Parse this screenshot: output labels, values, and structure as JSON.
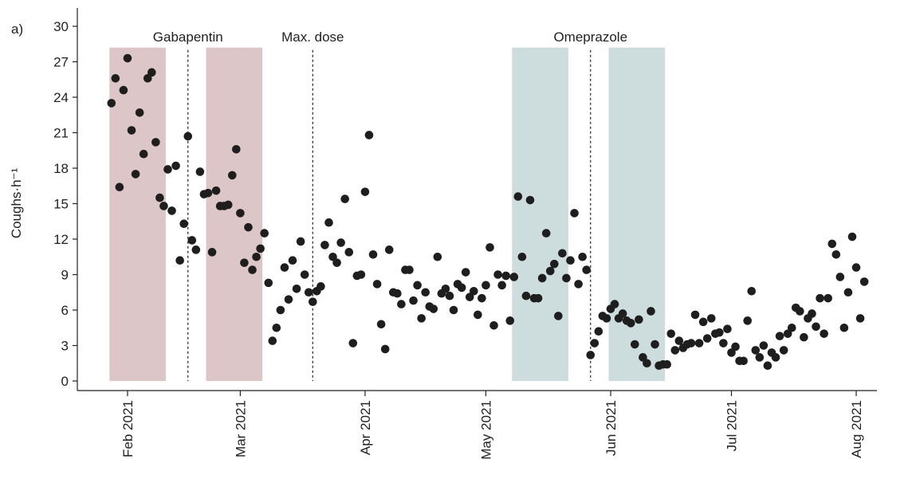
{
  "panel_label": "a)",
  "chart_data": {
    "type": "scatter",
    "xlabel": "",
    "ylabel": "Coughs·h⁻¹",
    "ylim": [
      0,
      30
    ],
    "yticks": [
      0,
      3,
      6,
      9,
      12,
      15,
      18,
      21,
      24,
      27,
      30
    ],
    "xticks": [
      {
        "date": "2021-02-01",
        "label": "Feb 2021"
      },
      {
        "date": "2021-03-01",
        "label": "Mar 2021"
      },
      {
        "date": "2021-04-01",
        "label": "Apr 2021"
      },
      {
        "date": "2021-05-01",
        "label": "May 2021"
      },
      {
        "date": "2021-06-01",
        "label": "Jun 2021"
      },
      {
        "date": "2021-07-01",
        "label": "Jul 2021"
      },
      {
        "date": "2021-08-01",
        "label": "Aug 2021"
      }
    ],
    "grid": false,
    "point_color": "#1e1e1e",
    "shaded_periods": [
      {
        "start": "2021-01-28",
        "end": "2021-02-10",
        "color": "#dcc6c8"
      },
      {
        "start": "2021-02-21",
        "end": "2021-03-06",
        "color": "#dcc6c8"
      },
      {
        "start": "2021-05-08",
        "end": "2021-05-21",
        "color": "#cddcdc"
      },
      {
        "start": "2021-06-01",
        "end": "2021-06-14",
        "color": "#cddcdc"
      }
    ],
    "annotations": [
      {
        "date": "2021-02-16",
        "label": "Gabapentin",
        "dashed_line": true
      },
      {
        "date": "2021-03-19",
        "label": "Max. dose",
        "dashed_line": true
      },
      {
        "date": "2021-05-27",
        "label": "Omeprazole",
        "dashed_line": true
      }
    ],
    "points": [
      [
        "2021-01-28",
        23.5
      ],
      [
        "2021-01-29",
        25.6
      ],
      [
        "2021-01-30",
        16.4
      ],
      [
        "2021-01-31",
        24.6
      ],
      [
        "2021-02-01",
        27.3
      ],
      [
        "2021-02-02",
        21.2
      ],
      [
        "2021-02-03",
        17.5
      ],
      [
        "2021-02-04",
        22.7
      ],
      [
        "2021-02-05",
        19.2
      ],
      [
        "2021-02-06",
        25.6
      ],
      [
        "2021-02-07",
        26.1
      ],
      [
        "2021-02-08",
        20.2
      ],
      [
        "2021-02-09",
        15.5
      ],
      [
        "2021-02-10",
        14.8
      ],
      [
        "2021-02-11",
        17.9
      ],
      [
        "2021-02-12",
        14.4
      ],
      [
        "2021-02-13",
        18.2
      ],
      [
        "2021-02-14",
        10.2
      ],
      [
        "2021-02-15",
        13.3
      ],
      [
        "2021-02-16",
        20.7
      ],
      [
        "2021-02-17",
        11.9
      ],
      [
        "2021-02-18",
        11.1
      ],
      [
        "2021-02-19",
        17.7
      ],
      [
        "2021-02-20",
        15.8
      ],
      [
        "2021-02-21",
        15.9
      ],
      [
        "2021-02-22",
        10.9
      ],
      [
        "2021-02-23",
        16.1
      ],
      [
        "2021-02-24",
        14.8
      ],
      [
        "2021-02-25",
        14.8
      ],
      [
        "2021-02-26",
        14.9
      ],
      [
        "2021-02-27",
        17.4
      ],
      [
        "2021-02-28",
        19.6
      ],
      [
        "2021-03-01",
        14.2
      ],
      [
        "2021-03-02",
        10.0
      ],
      [
        "2021-03-03",
        13.0
      ],
      [
        "2021-03-04",
        9.4
      ],
      [
        "2021-03-05",
        10.5
      ],
      [
        "2021-03-06",
        11.2
      ],
      [
        "2021-03-07",
        12.5
      ],
      [
        "2021-03-08",
        8.3
      ],
      [
        "2021-03-09",
        3.4
      ],
      [
        "2021-03-10",
        4.5
      ],
      [
        "2021-03-11",
        6.0
      ],
      [
        "2021-03-12",
        9.6
      ],
      [
        "2021-03-13",
        6.9
      ],
      [
        "2021-03-14",
        10.2
      ],
      [
        "2021-03-15",
        7.8
      ],
      [
        "2021-03-16",
        11.8
      ],
      [
        "2021-03-17",
        9.0
      ],
      [
        "2021-03-18",
        7.5
      ],
      [
        "2021-03-19",
        6.7
      ],
      [
        "2021-03-20",
        7.6
      ],
      [
        "2021-03-21",
        8.0
      ],
      [
        "2021-03-22",
        11.5
      ],
      [
        "2021-03-23",
        13.4
      ],
      [
        "2021-03-24",
        10.5
      ],
      [
        "2021-03-25",
        10.0
      ],
      [
        "2021-03-26",
        11.7
      ],
      [
        "2021-03-27",
        15.4
      ],
      [
        "2021-03-28",
        10.9
      ],
      [
        "2021-03-29",
        3.2
      ],
      [
        "2021-03-30",
        8.9
      ],
      [
        "2021-03-31",
        9.0
      ],
      [
        "2021-04-01",
        16.0
      ],
      [
        "2021-04-02",
        20.8
      ],
      [
        "2021-04-03",
        10.7
      ],
      [
        "2021-04-04",
        8.2
      ],
      [
        "2021-04-05",
        4.8
      ],
      [
        "2021-04-06",
        2.7
      ],
      [
        "2021-04-07",
        11.1
      ],
      [
        "2021-04-08",
        7.5
      ],
      [
        "2021-04-09",
        7.4
      ],
      [
        "2021-04-10",
        6.5
      ],
      [
        "2021-04-11",
        9.4
      ],
      [
        "2021-04-12",
        9.4
      ],
      [
        "2021-04-13",
        6.8
      ],
      [
        "2021-04-14",
        8.1
      ],
      [
        "2021-04-15",
        5.3
      ],
      [
        "2021-04-16",
        7.5
      ],
      [
        "2021-04-17",
        6.3
      ],
      [
        "2021-04-18",
        6.1
      ],
      [
        "2021-04-19",
        10.5
      ],
      [
        "2021-04-20",
        7.4
      ],
      [
        "2021-04-21",
        7.8
      ],
      [
        "2021-04-22",
        7.2
      ],
      [
        "2021-04-23",
        6.0
      ],
      [
        "2021-04-24",
        8.2
      ],
      [
        "2021-04-25",
        7.9
      ],
      [
        "2021-04-26",
        9.2
      ],
      [
        "2021-04-27",
        7.1
      ],
      [
        "2021-04-28",
        7.6
      ],
      [
        "2021-04-29",
        5.6
      ],
      [
        "2021-04-30",
        7.0
      ],
      [
        "2021-05-01",
        8.1
      ],
      [
        "2021-05-02",
        11.3
      ],
      [
        "2021-05-03",
        4.7
      ],
      [
        "2021-05-04",
        9.0
      ],
      [
        "2021-05-05",
        8.1
      ],
      [
        "2021-05-06",
        8.9
      ],
      [
        "2021-05-07",
        5.1
      ],
      [
        "2021-05-08",
        8.8
      ],
      [
        "2021-05-09",
        15.6
      ],
      [
        "2021-05-10",
        10.5
      ],
      [
        "2021-05-11",
        7.2
      ],
      [
        "2021-05-12",
        15.3
      ],
      [
        "2021-05-13",
        7.0
      ],
      [
        "2021-05-14",
        7.0
      ],
      [
        "2021-05-15",
        8.7
      ],
      [
        "2021-05-16",
        12.5
      ],
      [
        "2021-05-17",
        9.3
      ],
      [
        "2021-05-18",
        9.9
      ],
      [
        "2021-05-19",
        5.5
      ],
      [
        "2021-05-20",
        10.8
      ],
      [
        "2021-05-21",
        8.7
      ],
      [
        "2021-05-22",
        10.2
      ],
      [
        "2021-05-23",
        14.2
      ],
      [
        "2021-05-24",
        8.2
      ],
      [
        "2021-05-25",
        10.5
      ],
      [
        "2021-05-26",
        9.4
      ],
      [
        "2021-05-27",
        2.2
      ],
      [
        "2021-05-28",
        3.2
      ],
      [
        "2021-05-29",
        4.2
      ],
      [
        "2021-05-30",
        5.5
      ],
      [
        "2021-05-31",
        5.3
      ],
      [
        "2021-06-01",
        6.1
      ],
      [
        "2021-06-02",
        6.5
      ],
      [
        "2021-06-03",
        5.3
      ],
      [
        "2021-06-04",
        5.7
      ],
      [
        "2021-06-05",
        5.1
      ],
      [
        "2021-06-06",
        4.9
      ],
      [
        "2021-06-07",
        3.1
      ],
      [
        "2021-06-08",
        5.2
      ],
      [
        "2021-06-09",
        2.0
      ],
      [
        "2021-06-10",
        1.5
      ],
      [
        "2021-06-11",
        5.9
      ],
      [
        "2021-06-12",
        3.1
      ],
      [
        "2021-06-13",
        1.3
      ],
      [
        "2021-06-14",
        1.4
      ],
      [
        "2021-06-15",
        1.4
      ],
      [
        "2021-06-16",
        4.0
      ],
      [
        "2021-06-17",
        2.6
      ],
      [
        "2021-06-18",
        3.4
      ],
      [
        "2021-06-19",
        2.8
      ],
      [
        "2021-06-20",
        3.1
      ],
      [
        "2021-06-21",
        3.2
      ],
      [
        "2021-06-22",
        5.6
      ],
      [
        "2021-06-23",
        3.2
      ],
      [
        "2021-06-24",
        5.0
      ],
      [
        "2021-06-25",
        3.6
      ],
      [
        "2021-06-26",
        5.3
      ],
      [
        "2021-06-27",
        4.0
      ],
      [
        "2021-06-28",
        4.1
      ],
      [
        "2021-06-29",
        3.2
      ],
      [
        "2021-06-30",
        4.4
      ],
      [
        "2021-07-01",
        2.4
      ],
      [
        "2021-07-02",
        2.9
      ],
      [
        "2021-07-03",
        1.7
      ],
      [
        "2021-07-04",
        1.7
      ],
      [
        "2021-07-05",
        5.1
      ],
      [
        "2021-07-06",
        7.6
      ],
      [
        "2021-07-07",
        2.6
      ],
      [
        "2021-07-08",
        2.0
      ],
      [
        "2021-07-09",
        3.0
      ],
      [
        "2021-07-10",
        1.3
      ],
      [
        "2021-07-11",
        2.4
      ],
      [
        "2021-07-12",
        2.0
      ],
      [
        "2021-07-13",
        3.8
      ],
      [
        "2021-07-14",
        2.6
      ],
      [
        "2021-07-15",
        4.0
      ],
      [
        "2021-07-16",
        4.5
      ],
      [
        "2021-07-17",
        6.2
      ],
      [
        "2021-07-18",
        5.9
      ],
      [
        "2021-07-19",
        3.7
      ],
      [
        "2021-07-20",
        5.3
      ],
      [
        "2021-07-21",
        5.7
      ],
      [
        "2021-07-22",
        4.6
      ],
      [
        "2021-07-23",
        7.0
      ],
      [
        "2021-07-24",
        4.0
      ],
      [
        "2021-07-25",
        7.0
      ],
      [
        "2021-07-26",
        11.6
      ],
      [
        "2021-07-27",
        10.7
      ],
      [
        "2021-07-28",
        8.8
      ],
      [
        "2021-07-29",
        4.5
      ],
      [
        "2021-07-30",
        7.5
      ],
      [
        "2021-07-31",
        12.2
      ],
      [
        "2021-08-01",
        9.6
      ],
      [
        "2021-08-02",
        5.3
      ],
      [
        "2021-08-03",
        8.4
      ]
    ]
  }
}
